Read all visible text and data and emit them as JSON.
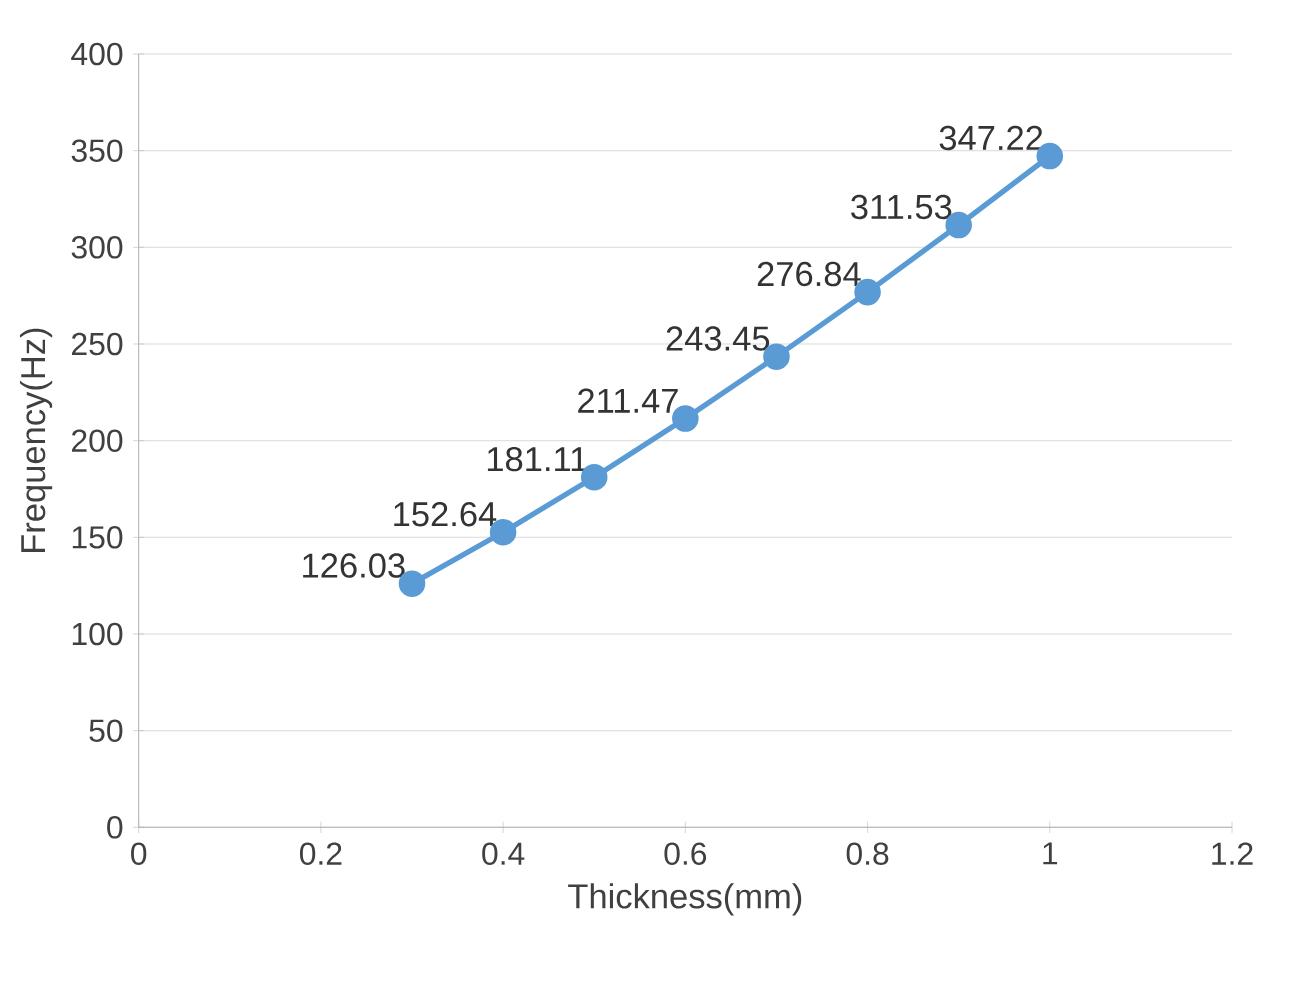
{
  "chart_data": {
    "type": "line",
    "xlabel": "Thickness(mm)",
    "ylabel": "Frequency(Hz)",
    "x": [
      0.3,
      0.4,
      0.5,
      0.6,
      0.7,
      0.8,
      0.9,
      1.0
    ],
    "values": [
      126.03,
      152.64,
      181.11,
      211.47,
      243.45,
      276.84,
      311.53,
      347.22
    ],
    "color": "#5b9bd5",
    "marker": "circle",
    "line_style": "solid",
    "data_labels": true,
    "xlim": [
      0,
      1.2
    ],
    "xticks": [
      0,
      0.2,
      0.4,
      0.6,
      0.8,
      1,
      1.2
    ],
    "ylim": [
      0,
      400
    ],
    "yticks": [
      0,
      50,
      100,
      150,
      200,
      250,
      300,
      350,
      400
    ],
    "grid": "y"
  }
}
